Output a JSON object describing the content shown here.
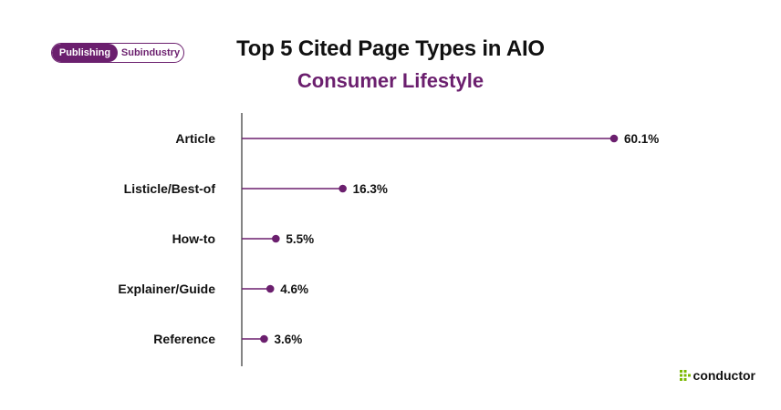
{
  "toggle": {
    "active_label": "Publishing",
    "inactive_label": "Subindustry"
  },
  "chart_data": {
    "type": "bar",
    "title": "Top 5 Cited Page Types in AIO",
    "subtitle": "Consumer Lifestyle",
    "categories": [
      "Article",
      "Listicle/Best-of",
      "How-to",
      "Explainer/Guide",
      "Reference"
    ],
    "values": [
      60.1,
      16.3,
      5.5,
      4.6,
      3.6
    ],
    "value_labels": [
      "60.1%",
      "16.3%",
      "5.5%",
      "4.6%",
      "3.6%"
    ],
    "orientation": "horizontal",
    "style": "lollipop",
    "xlim": [
      0,
      60.1
    ],
    "grid": false,
    "colors": {
      "accent": "#6b1f6e",
      "logo": "#7ab800"
    }
  },
  "brand": {
    "name": "conductor",
    "icon": "conductor-logo-icon"
  }
}
